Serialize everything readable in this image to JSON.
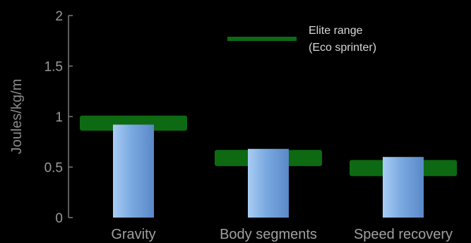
{
  "chart_data": {
    "type": "bar",
    "title": "",
    "xlabel": "",
    "ylabel": "Joules/kg/m",
    "ylim": [
      0,
      2
    ],
    "yticks": [
      "0",
      "0.5",
      "1",
      "1.5",
      "2"
    ],
    "grid": false,
    "categories": [
      "Gravity",
      "Body segments",
      "Speed recovery"
    ],
    "series": [
      {
        "type": "bar",
        "values": [
          0.92,
          0.68,
          0.6
        ]
      },
      {
        "name": "Elite range (Eco sprinter)",
        "type": "range",
        "low": [
          0.86,
          0.51,
          0.41
        ],
        "high": [
          1.01,
          0.67,
          0.57
        ]
      }
    ],
    "legend": {
      "position": "top-right",
      "lines": [
        "Elite range",
        "(Eco sprinter)"
      ]
    },
    "colors": {
      "background": "#000000",
      "bar_light": "#a9cdf4",
      "bar_mid": "#7aa9e0",
      "bar_dark": "#5a88c8",
      "range_band": "#0d6a12",
      "axis": "#7a7a7a"
    }
  }
}
